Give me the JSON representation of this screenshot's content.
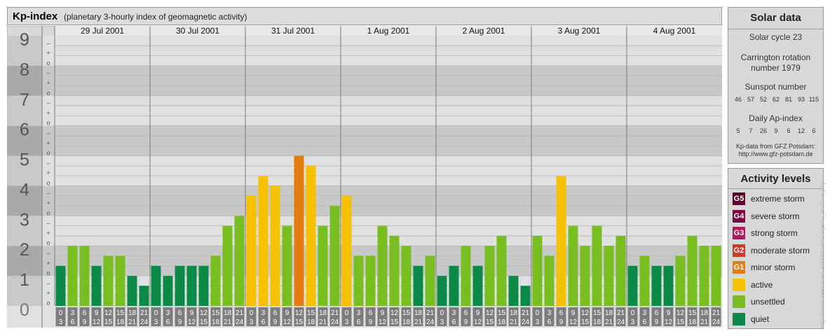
{
  "title": {
    "main": "Kp-index",
    "sub": "(planetary 3-hourly index of geomagnetic activity)"
  },
  "chart_data": {
    "type": "bar",
    "title": "Kp-index",
    "subtitle": "(planetary 3-hourly index of geomagnetic activity)",
    "ylim": [
      0,
      9
    ],
    "y_ticks": [
      "0",
      "1",
      "2",
      "3",
      "4",
      "5",
      "6",
      "7",
      "8",
      "9"
    ],
    "sub_ticks": [
      "o",
      "+",
      "–"
    ],
    "days": [
      "29 Jul 2001",
      "30 Jul 2001",
      "31 Jul 2001",
      "1 Aug 2001",
      "2 Aug 2001",
      "3 Aug 2001",
      "4 Aug 2001"
    ],
    "x_tick_top": [
      "0",
      "3",
      "6",
      "9",
      "12",
      "15",
      "18",
      "21"
    ],
    "x_tick_bottom": [
      "3",
      "6",
      "9",
      "12",
      "15",
      "18",
      "21",
      "24"
    ],
    "values": [
      1.333,
      2,
      2,
      1.333,
      1.667,
      1.667,
      1,
      0.667,
      1.333,
      1,
      1.333,
      1.333,
      1.333,
      1.667,
      2.667,
      3,
      3.667,
      4.333,
      4,
      2.667,
      5,
      4.667,
      2.667,
      3.333,
      3.667,
      1.667,
      1.667,
      2.667,
      2.333,
      2,
      1.333,
      1.667,
      1,
      1.333,
      2,
      1.333,
      2,
      2.333,
      1,
      0.667,
      2.333,
      1.667,
      4.333,
      2.667,
      2,
      2.667,
      2,
      2.333,
      1.333,
      1.667,
      1.333,
      1.333,
      1.667,
      2.333,
      2,
      2
    ],
    "level_colors": {
      "quiet": "#0a8a46",
      "unsettled": "#78be20",
      "active": "#f6c100",
      "G1": "#e57c10",
      "G2": "#cc3a2a",
      "G3": "#b0195c",
      "G4": "#7a0a44",
      "G5": "#5a0028"
    },
    "grid": true
  },
  "solar": {
    "heading": "Solar data",
    "cycle": "Solar cycle 23",
    "carrington_1": "Carrington rotation",
    "carrington_2": "number 1979",
    "sunspot_heading": "Sunspot number",
    "sunspot_values": [
      "46",
      "57",
      "52",
      "62",
      "81",
      "93",
      "115"
    ],
    "ap_heading": "Daily Ap-index",
    "ap_values": [
      "5",
      "7",
      "26",
      "9",
      "6",
      "12",
      "6"
    ],
    "source_1": "Kp-data from GFZ Potsdam:",
    "source_2": "http://www.gfz-potsdam.de"
  },
  "legend": {
    "heading": "Activity levels",
    "items": [
      {
        "code": "G5",
        "label": "extreme storm",
        "color": "#5a0028"
      },
      {
        "code": "G4",
        "label": "severe storm",
        "color": "#7a0a44"
      },
      {
        "code": "G3",
        "label": "strong storm",
        "color": "#b0195c"
      },
      {
        "code": "G2",
        "label": "moderate storm",
        "color": "#cc3a2a"
      },
      {
        "code": "G1",
        "label": "minor storm",
        "color": "#e57c10"
      },
      {
        "code": "",
        "label": "active",
        "color": "#f6c100"
      },
      {
        "code": "",
        "label": "unsettled",
        "color": "#78be20"
      },
      {
        "code": "",
        "label": "quiet",
        "color": "#0a8a46"
      }
    ]
  },
  "watermark": "http://www.tiesvanen.eu/sesnehurorje/ru_archive.php"
}
